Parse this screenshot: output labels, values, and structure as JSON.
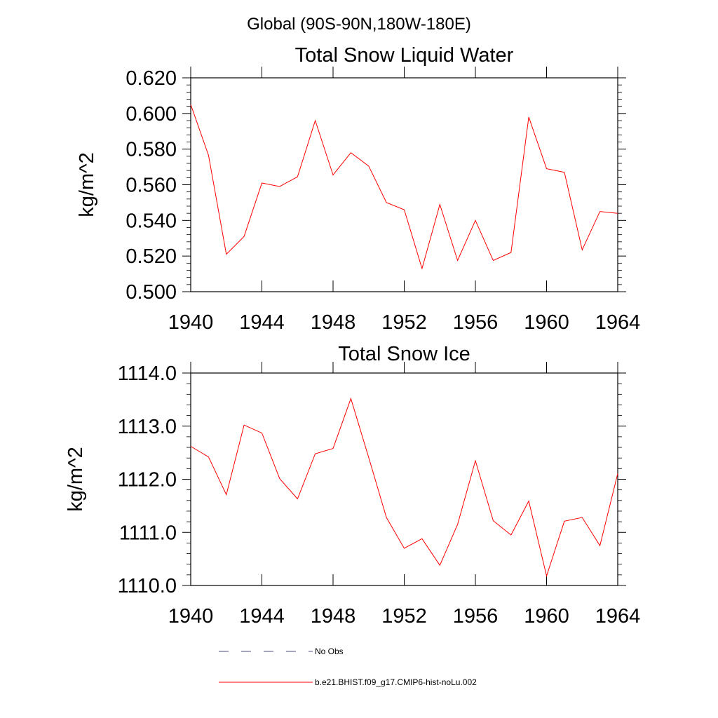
{
  "header": {
    "main_title": "Global (90S-90N,180W-180E)"
  },
  "chart_data": [
    {
      "type": "line",
      "title": "Total Snow Liquid Water",
      "xlabel": "",
      "ylabel": "kg/m^2",
      "xlim": [
        1940,
        1964
      ],
      "ylim": [
        0.5,
        0.62
      ],
      "x_ticks": [
        1940,
        1944,
        1948,
        1952,
        1956,
        1960,
        1964
      ],
      "x_tick_labels": [
        "1940",
        "1944",
        "1948",
        "1952",
        "1956",
        "1960",
        "1964"
      ],
      "y_ticks": [
        0.5,
        0.52,
        0.54,
        0.56,
        0.58,
        0.6,
        0.62
      ],
      "y_tick_labels": [
        "0.500",
        "0.520",
        "0.540",
        "0.560",
        "0.580",
        "0.600",
        "0.620"
      ],
      "grid": false,
      "series": [
        {
          "name": "b.e21.BHIST.f09_g17.CMIP6-hist-noLu.002",
          "color": "#ff0000",
          "x": [
            1940,
            1941,
            1942,
            1943,
            1944,
            1945,
            1946,
            1947,
            1948,
            1949,
            1950,
            1951,
            1952,
            1953,
            1954,
            1955,
            1956,
            1957,
            1958,
            1959,
            1960,
            1961,
            1962,
            1963,
            1964
          ],
          "values": [
            0.605,
            0.5765,
            0.521,
            0.531,
            0.561,
            0.559,
            0.5645,
            0.596,
            0.5655,
            0.578,
            0.5705,
            0.55,
            0.546,
            0.513,
            0.549,
            0.5175,
            0.54,
            0.5175,
            0.522,
            0.598,
            0.569,
            0.567,
            0.5235,
            0.545,
            0.544
          ]
        }
      ]
    },
    {
      "type": "line",
      "title": "Total Snow Ice",
      "xlabel": "",
      "ylabel": "kg/m^2",
      "xlim": [
        1940,
        1964
      ],
      "ylim": [
        1110.0,
        1114.0
      ],
      "x_ticks": [
        1940,
        1944,
        1948,
        1952,
        1956,
        1960,
        1964
      ],
      "x_tick_labels": [
        "1940",
        "1944",
        "1948",
        "1952",
        "1956",
        "1960",
        "1964"
      ],
      "y_ticks": [
        1110.0,
        1111.0,
        1112.0,
        1113.0,
        1114.0
      ],
      "y_tick_labels": [
        "1110.0",
        "1111.0",
        "1112.0",
        "1113.0",
        "1114.0"
      ],
      "grid": false,
      "series": [
        {
          "name": "b.e21.BHIST.f09_g17.CMIP6-hist-noLu.002",
          "color": "#ff0000",
          "x": [
            1940,
            1941,
            1942,
            1943,
            1944,
            1945,
            1946,
            1947,
            1948,
            1949,
            1950,
            1951,
            1952,
            1953,
            1954,
            1955,
            1956,
            1957,
            1958,
            1959,
            1960,
            1961,
            1962,
            1963,
            1964
          ],
          "values": [
            1112.62,
            1112.42,
            1111.71,
            1113.02,
            1112.87,
            1112.01,
            1111.63,
            1112.48,
            1112.58,
            1113.52,
            1112.41,
            1111.28,
            1110.7,
            1110.88,
            1110.38,
            1111.15,
            1112.35,
            1111.22,
            1110.95,
            1111.59,
            1110.18,
            1111.21,
            1111.28,
            1110.75,
            1112.11
          ]
        }
      ]
    }
  ],
  "legend": {
    "placement": "bottom",
    "entries": [
      {
        "label": "No Obs",
        "color": "#4a4a7a",
        "style": "dashed"
      },
      {
        "label": "b.e21.BHIST.f09_g17.CMIP6-hist-noLu.002",
        "color": "#ff0000",
        "style": "solid"
      }
    ]
  }
}
